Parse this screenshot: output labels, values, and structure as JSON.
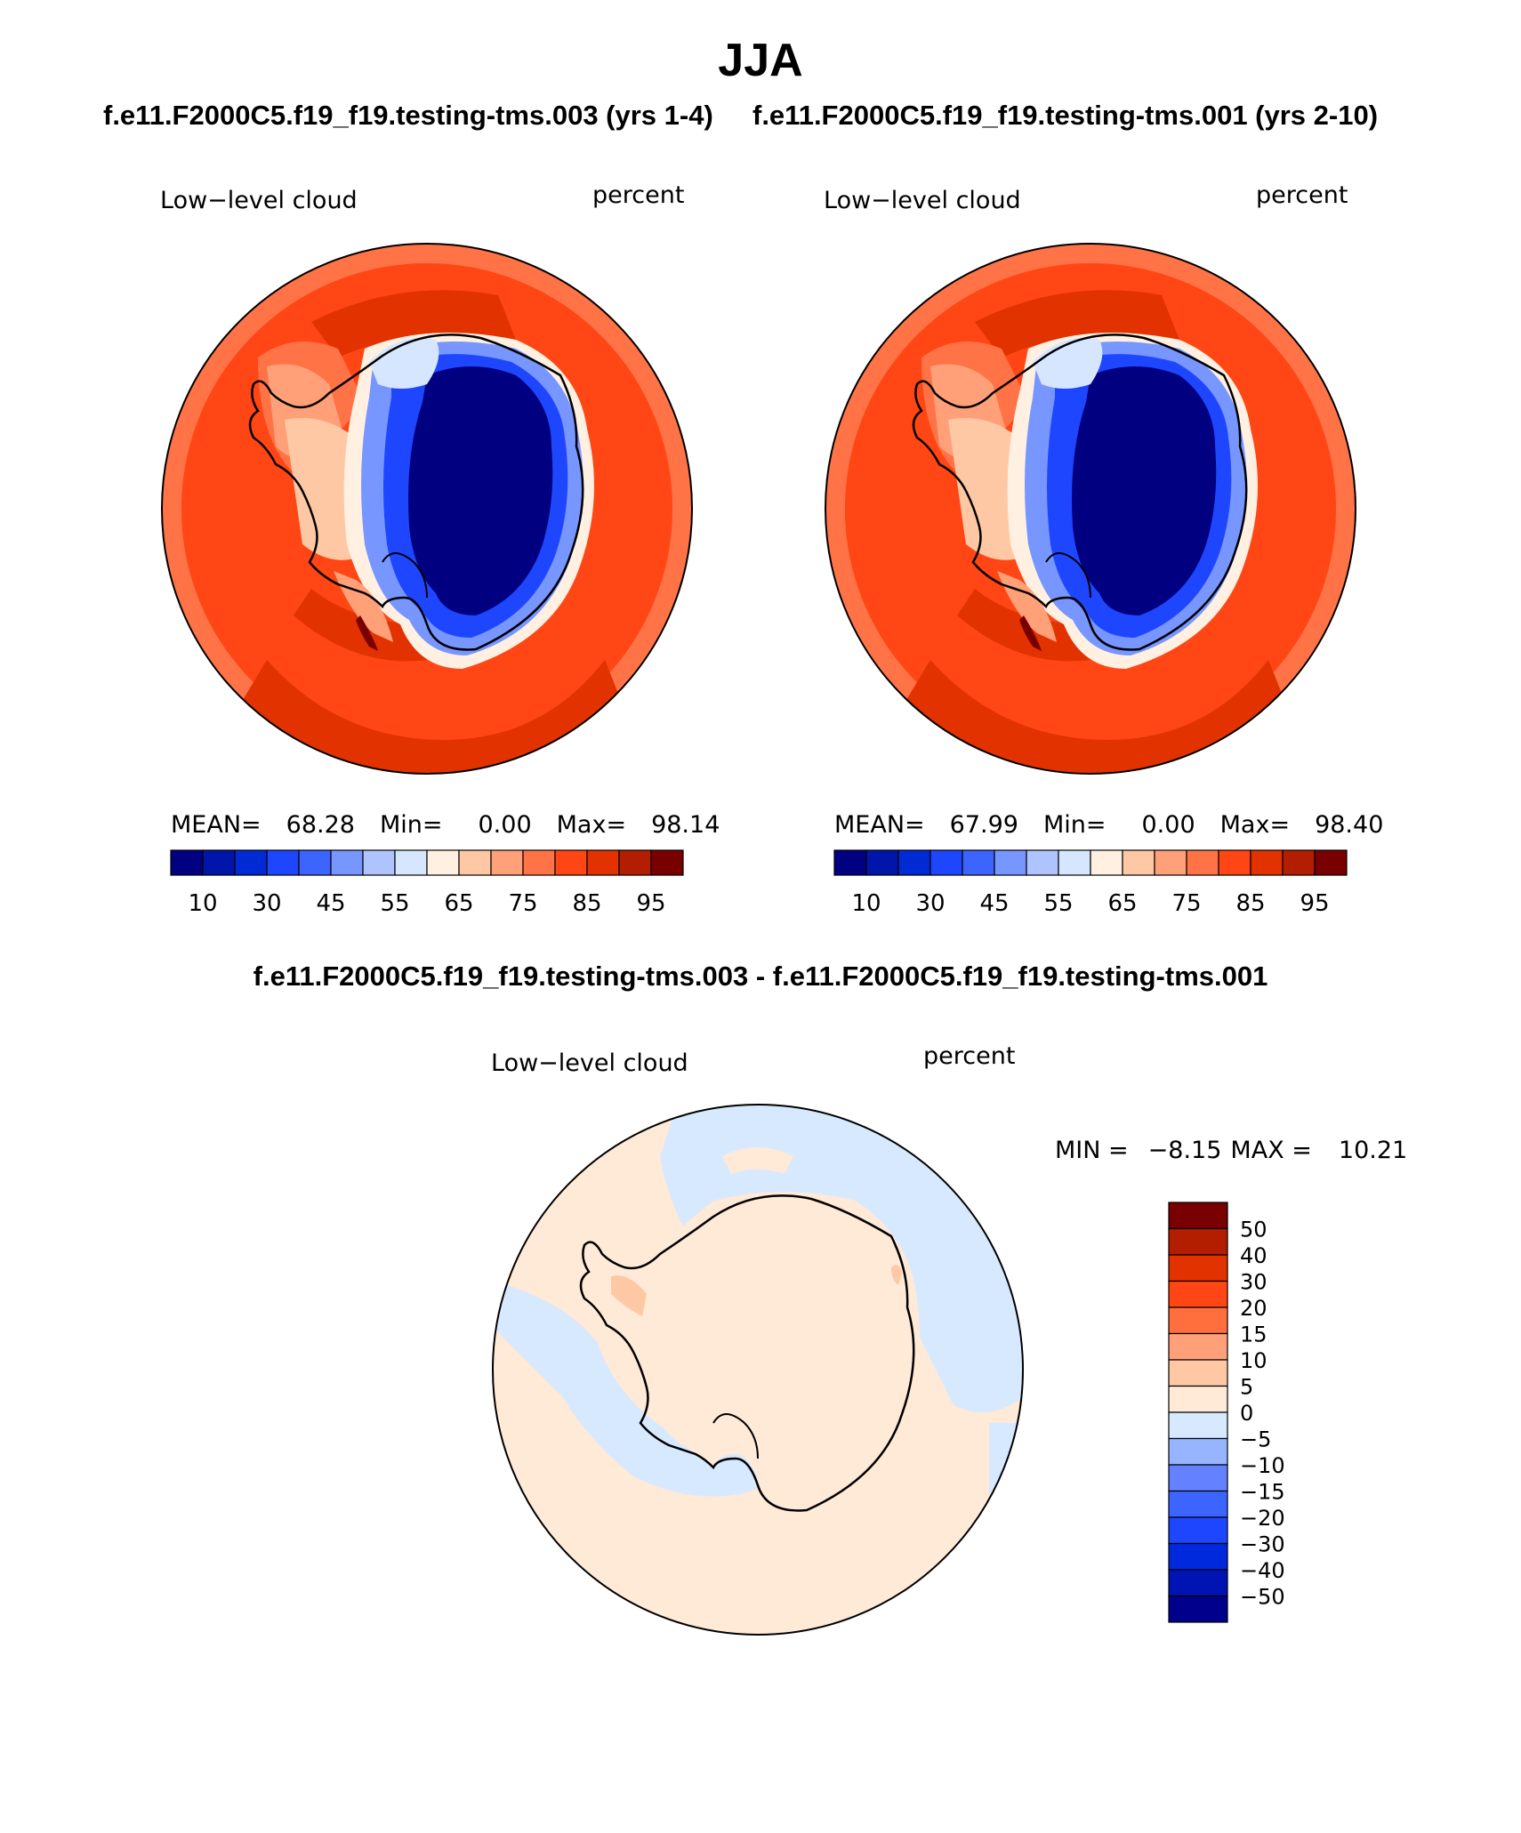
{
  "page_title": "JJA",
  "case1_title": "f.e11.F2000C5.f19_f19.testing-tms.003 (yrs 1-4)",
  "case2_title": "f.e11.F2000C5.f19_f19.testing-tms.001 (yrs 2-10)",
  "diff_title": "f.e11.F2000C5.f19_f19.testing-tms.003 - f.e11.F2000C5.f19_f19.testing-tms.001",
  "colors": {
    "abs_scale": [
      "#000080",
      "#0015aa",
      "#002ad4",
      "#1e46ff",
      "#3c64ff",
      "#7896ff",
      "#afc3ff",
      "#d7e6ff",
      "#fff0e1",
      "#ffc8a5",
      "#ffa078",
      "#ff7346",
      "#ff4614",
      "#e13200",
      "#b41e00",
      "#780000"
    ],
    "diff_scale": [
      "#00008c",
      "#0014b4",
      "#0028dc",
      "#1e46ff",
      "#3c64ff",
      "#6482ff",
      "#96b4ff",
      "#d7e9ff",
      "#ffe9d7",
      "#ffc8a5",
      "#ffa078",
      "#ff6e3c",
      "#ff4614",
      "#e13200",
      "#b41e00",
      "#780000"
    ],
    "coast": "#000000"
  },
  "chart_data": [
    {
      "type": "heatmap",
      "map": "south-polar-stereographic",
      "variable": "Low−level cloud",
      "units": "percent",
      "stats": {
        "mean_label": "MEAN=",
        "mean": "68.28",
        "min_label": "Min=",
        "min": "0.00",
        "max_label": "Max=",
        "max": "98.14"
      },
      "colorbar_ticks": [
        "10",
        "30",
        "45",
        "55",
        "65",
        "75",
        "85",
        "95"
      ]
    },
    {
      "type": "heatmap",
      "map": "south-polar-stereographic",
      "variable": "Low−level cloud",
      "units": "percent",
      "stats": {
        "mean_label": "MEAN=",
        "mean": "67.99",
        "min_label": "Min=",
        "min": "0.00",
        "max_label": "Max=",
        "max": "98.40"
      },
      "colorbar_ticks": [
        "10",
        "30",
        "45",
        "55",
        "65",
        "75",
        "85",
        "95"
      ]
    },
    {
      "type": "heatmap",
      "map": "south-polar-stereographic",
      "variable": "Low−level cloud",
      "units": "percent",
      "stats": {
        "min_label": "MIN =",
        "min": "−8.15",
        "max_label": "MAX =",
        "max": "10.21"
      },
      "colorbar_ticks": [
        "50",
        "40",
        "30",
        "20",
        "15",
        "10",
        "5",
        "0",
        "−5",
        "−10",
        "−15",
        "−20",
        "−30",
        "−40",
        "−50"
      ]
    }
  ]
}
